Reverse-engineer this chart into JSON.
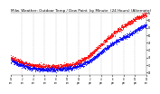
{
  "title": "Milw. Weather: Outdoor Temp / Dew Point  by Minute  (24 Hours) (Alternate)",
  "title_fontsize": 3.0,
  "bg_color": "#ffffff",
  "temp_color": "#ff0000",
  "dew_color": "#0000ff",
  "grid_color": "#aaaaaa",
  "ylim": [
    23,
    65
  ],
  "xlim": [
    0,
    1440
  ],
  "ytick_values": [
    65,
    60,
    55,
    50,
    45,
    40,
    35,
    30,
    25
  ],
  "xlabel_fontsize": 1.8,
  "ylabel_fontsize": 1.8,
  "marker_size": 0.3,
  "n_points": 1440,
  "temp_keyframes_x": [
    0,
    60,
    200,
    350,
    500,
    650,
    750,
    850,
    950,
    1050,
    1150,
    1250,
    1350,
    1440
  ],
  "temp_keyframes_y": [
    35,
    33,
    30,
    29,
    29,
    30,
    33,
    37,
    43,
    49,
    54,
    58,
    62,
    64
  ],
  "dew_keyframes_x": [
    0,
    60,
    200,
    350,
    500,
    650,
    750,
    850,
    950,
    1050,
    1150,
    1250,
    1350,
    1440
  ],
  "dew_keyframes_y": [
    33,
    31,
    28,
    27,
    27,
    28,
    30,
    33,
    38,
    43,
    47,
    50,
    54,
    57
  ],
  "noise_temp": 0.8,
  "noise_dew": 0.7,
  "grid_interval": 120
}
